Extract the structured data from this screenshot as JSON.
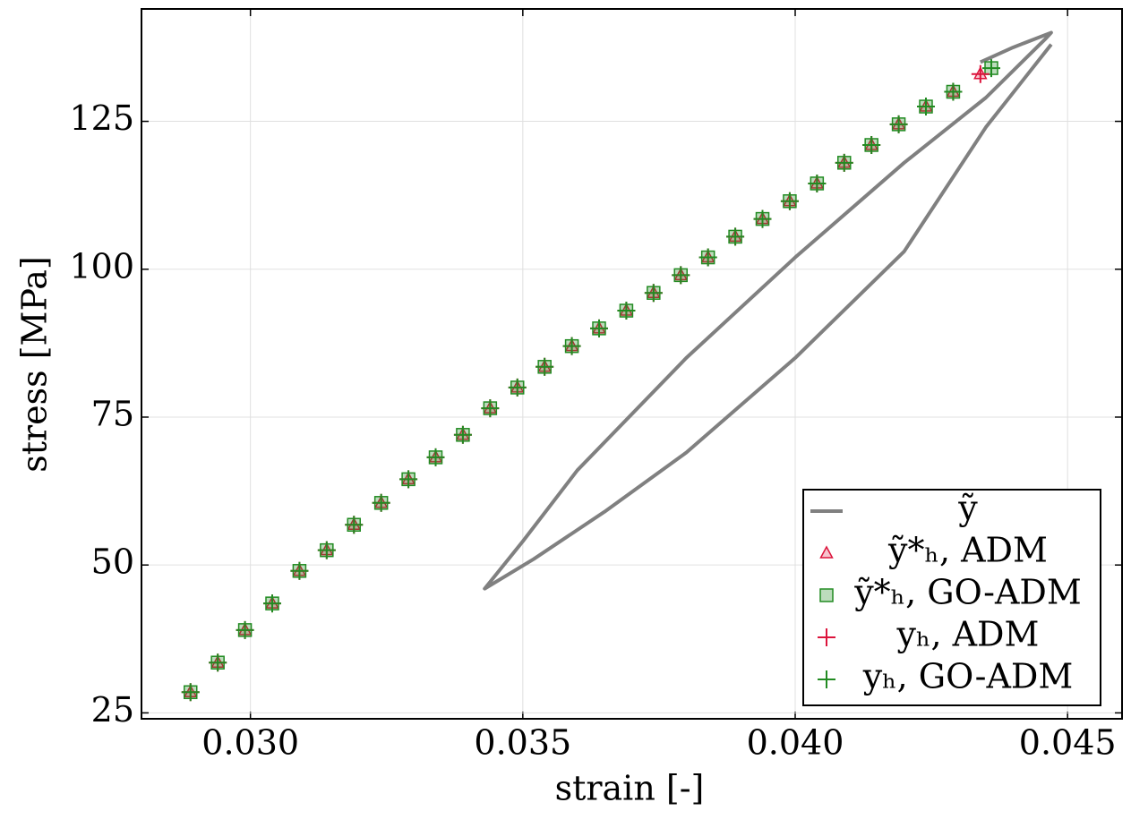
{
  "chart_data": {
    "type": "line",
    "x_label": "strain [-]",
    "y_label": "stress [MPa]",
    "xlim": [
      0.028,
      0.046
    ],
    "ylim": [
      24,
      144
    ],
    "xticks": [
      {
        "value": 0.03,
        "label": "0.030"
      },
      {
        "value": 0.035,
        "label": "0.035"
      },
      {
        "value": 0.04,
        "label": "0.040"
      },
      {
        "value": 0.045,
        "label": "0.045"
      }
    ],
    "yticks": [
      25,
      50,
      75,
      100,
      125
    ],
    "grid": true,
    "legend": "lower right",
    "series": [
      {
        "name": "ỹ",
        "color": "#808080",
        "marker": "line",
        "x": [
          0.0434,
          0.044,
          0.0447,
          0.0446,
          0.0435,
          0.042,
          0.04,
          0.038,
          0.036,
          0.035,
          0.0343,
          0.0352,
          0.0365,
          0.038,
          0.04,
          0.042,
          0.0435,
          0.0447
        ],
        "values": [
          135,
          137.5,
          140,
          139,
          129,
          118,
          102,
          85,
          66,
          54,
          46,
          51,
          59,
          69,
          85,
          103,
          124,
          138
        ]
      },
      {
        "name": "ỹ*ₕ, ADM",
        "color": "#dc143c",
        "marker": "triangle",
        "x": [
          0.0289,
          0.0294,
          0.0299,
          0.0304,
          0.0309,
          0.0314,
          0.0319,
          0.0324,
          0.0329,
          0.0334,
          0.0339,
          0.0344,
          0.0349,
          0.0354,
          0.0359,
          0.0364,
          0.0369,
          0.0374,
          0.0379,
          0.0384,
          0.0389,
          0.0394,
          0.0399,
          0.0404,
          0.0409,
          0.0414,
          0.0419,
          0.0424,
          0.0429,
          0.0434
        ],
        "values": [
          28.5,
          33.5,
          39,
          43.5,
          49,
          52.5,
          56.8,
          60.5,
          64.5,
          68.2,
          72,
          76.5,
          80,
          83.5,
          87,
          90,
          93,
          96,
          99,
          102,
          105.5,
          108.5,
          111.5,
          114.5,
          118,
          121,
          124.5,
          127.5,
          130,
          133
        ]
      },
      {
        "name": "ỹ*ₕ, GO-ADM",
        "color": "#228b22",
        "marker": "square",
        "x": [
          0.0289,
          0.0294,
          0.0299,
          0.0304,
          0.0309,
          0.0314,
          0.0319,
          0.0324,
          0.0329,
          0.0334,
          0.0339,
          0.0344,
          0.0349,
          0.0354,
          0.0359,
          0.0364,
          0.0369,
          0.0374,
          0.0379,
          0.0384,
          0.0389,
          0.0394,
          0.0399,
          0.0404,
          0.0409,
          0.0414,
          0.0419,
          0.0424,
          0.0429,
          0.0436
        ],
        "values": [
          28.5,
          33.5,
          39,
          43.5,
          49,
          52.5,
          56.8,
          60.5,
          64.5,
          68.2,
          72,
          76.5,
          80,
          83.5,
          87,
          90,
          93,
          96,
          99,
          102,
          105.5,
          108.5,
          111.5,
          114.5,
          118,
          121,
          124.5,
          127.5,
          130,
          134
        ]
      },
      {
        "name": "yₕ, ADM",
        "color": "#dc143c",
        "marker": "plus",
        "x": [
          0.0289,
          0.0294,
          0.0299,
          0.0304,
          0.0309,
          0.0314,
          0.0319,
          0.0324,
          0.0329,
          0.0334,
          0.0339,
          0.0344,
          0.0349,
          0.0354,
          0.0359,
          0.0364,
          0.0369,
          0.0374,
          0.0379,
          0.0384,
          0.0389,
          0.0394,
          0.0399,
          0.0404,
          0.0409,
          0.0414,
          0.0419,
          0.0424,
          0.0429,
          0.0434
        ],
        "values": [
          28.5,
          33.5,
          39,
          43.5,
          49,
          52.5,
          56.8,
          60.5,
          64.5,
          68.2,
          72,
          76.5,
          80,
          83.5,
          87,
          90,
          93,
          96,
          99,
          102,
          105.5,
          108.5,
          111.5,
          114.5,
          118,
          121,
          124.5,
          127.5,
          130,
          133
        ]
      },
      {
        "name": "yₕ, GO-ADM",
        "color": "#228b22",
        "marker": "plus",
        "x": [
          0.0289,
          0.0294,
          0.0299,
          0.0304,
          0.0309,
          0.0314,
          0.0319,
          0.0324,
          0.0329,
          0.0334,
          0.0339,
          0.0344,
          0.0349,
          0.0354,
          0.0359,
          0.0364,
          0.0369,
          0.0374,
          0.0379,
          0.0384,
          0.0389,
          0.0394,
          0.0399,
          0.0404,
          0.0409,
          0.0414,
          0.0419,
          0.0424,
          0.0429,
          0.0436
        ],
        "values": [
          28.5,
          33.5,
          39,
          43.5,
          49,
          52.5,
          56.8,
          60.5,
          64.5,
          68.2,
          72,
          76.5,
          80,
          83.5,
          87,
          90,
          93,
          96,
          99,
          102,
          105.5,
          108.5,
          111.5,
          114.5,
          118,
          121,
          124.5,
          127.5,
          130,
          134
        ]
      }
    ]
  }
}
